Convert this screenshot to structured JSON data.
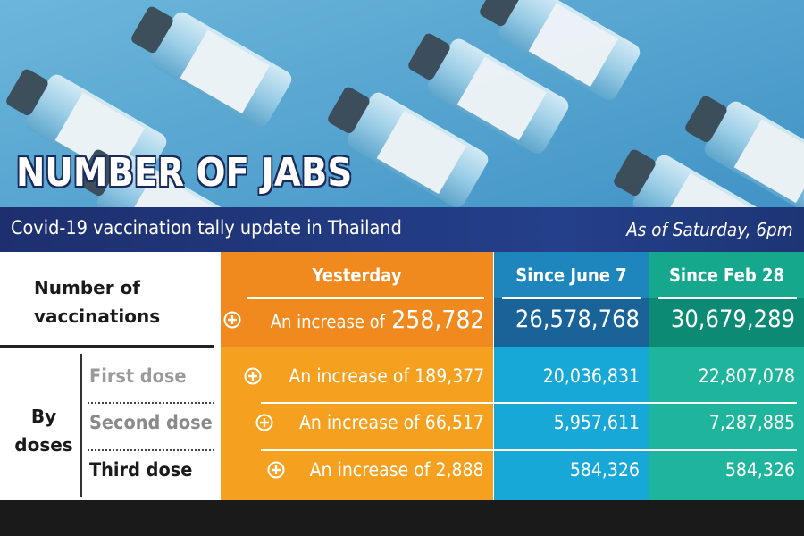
{
  "header": {
    "title": "NUMBER OF JABS",
    "subtitle": "Covid-19 vaccination tally update in Thailand",
    "as_of": "As of Saturday, 6pm"
  },
  "table": {
    "columns": [
      "Yesterday",
      "Since June 7",
      "Since Feb 28"
    ],
    "total": {
      "label": "Number of vaccinations",
      "increase_prefix": "An increase of",
      "yesterday": "258,782",
      "since_june_7": "26,578,768",
      "since_feb_28": "30,679,289"
    },
    "group_label": "By doses",
    "doses": [
      {
        "label": "First dose",
        "yesterday": "An increase of 189,377",
        "since_june_7": "20,036,831",
        "since_feb_28": "22,807,078"
      },
      {
        "label": "Second dose",
        "yesterday": "An increase of 66,517",
        "since_june_7": "5,957,611",
        "since_feb_28": "7,287,885"
      },
      {
        "label": "Third dose",
        "yesterday": "An increase of 2,888",
        "since_june_7": "584,326",
        "since_feb_28": "584,326"
      }
    ]
  }
}
